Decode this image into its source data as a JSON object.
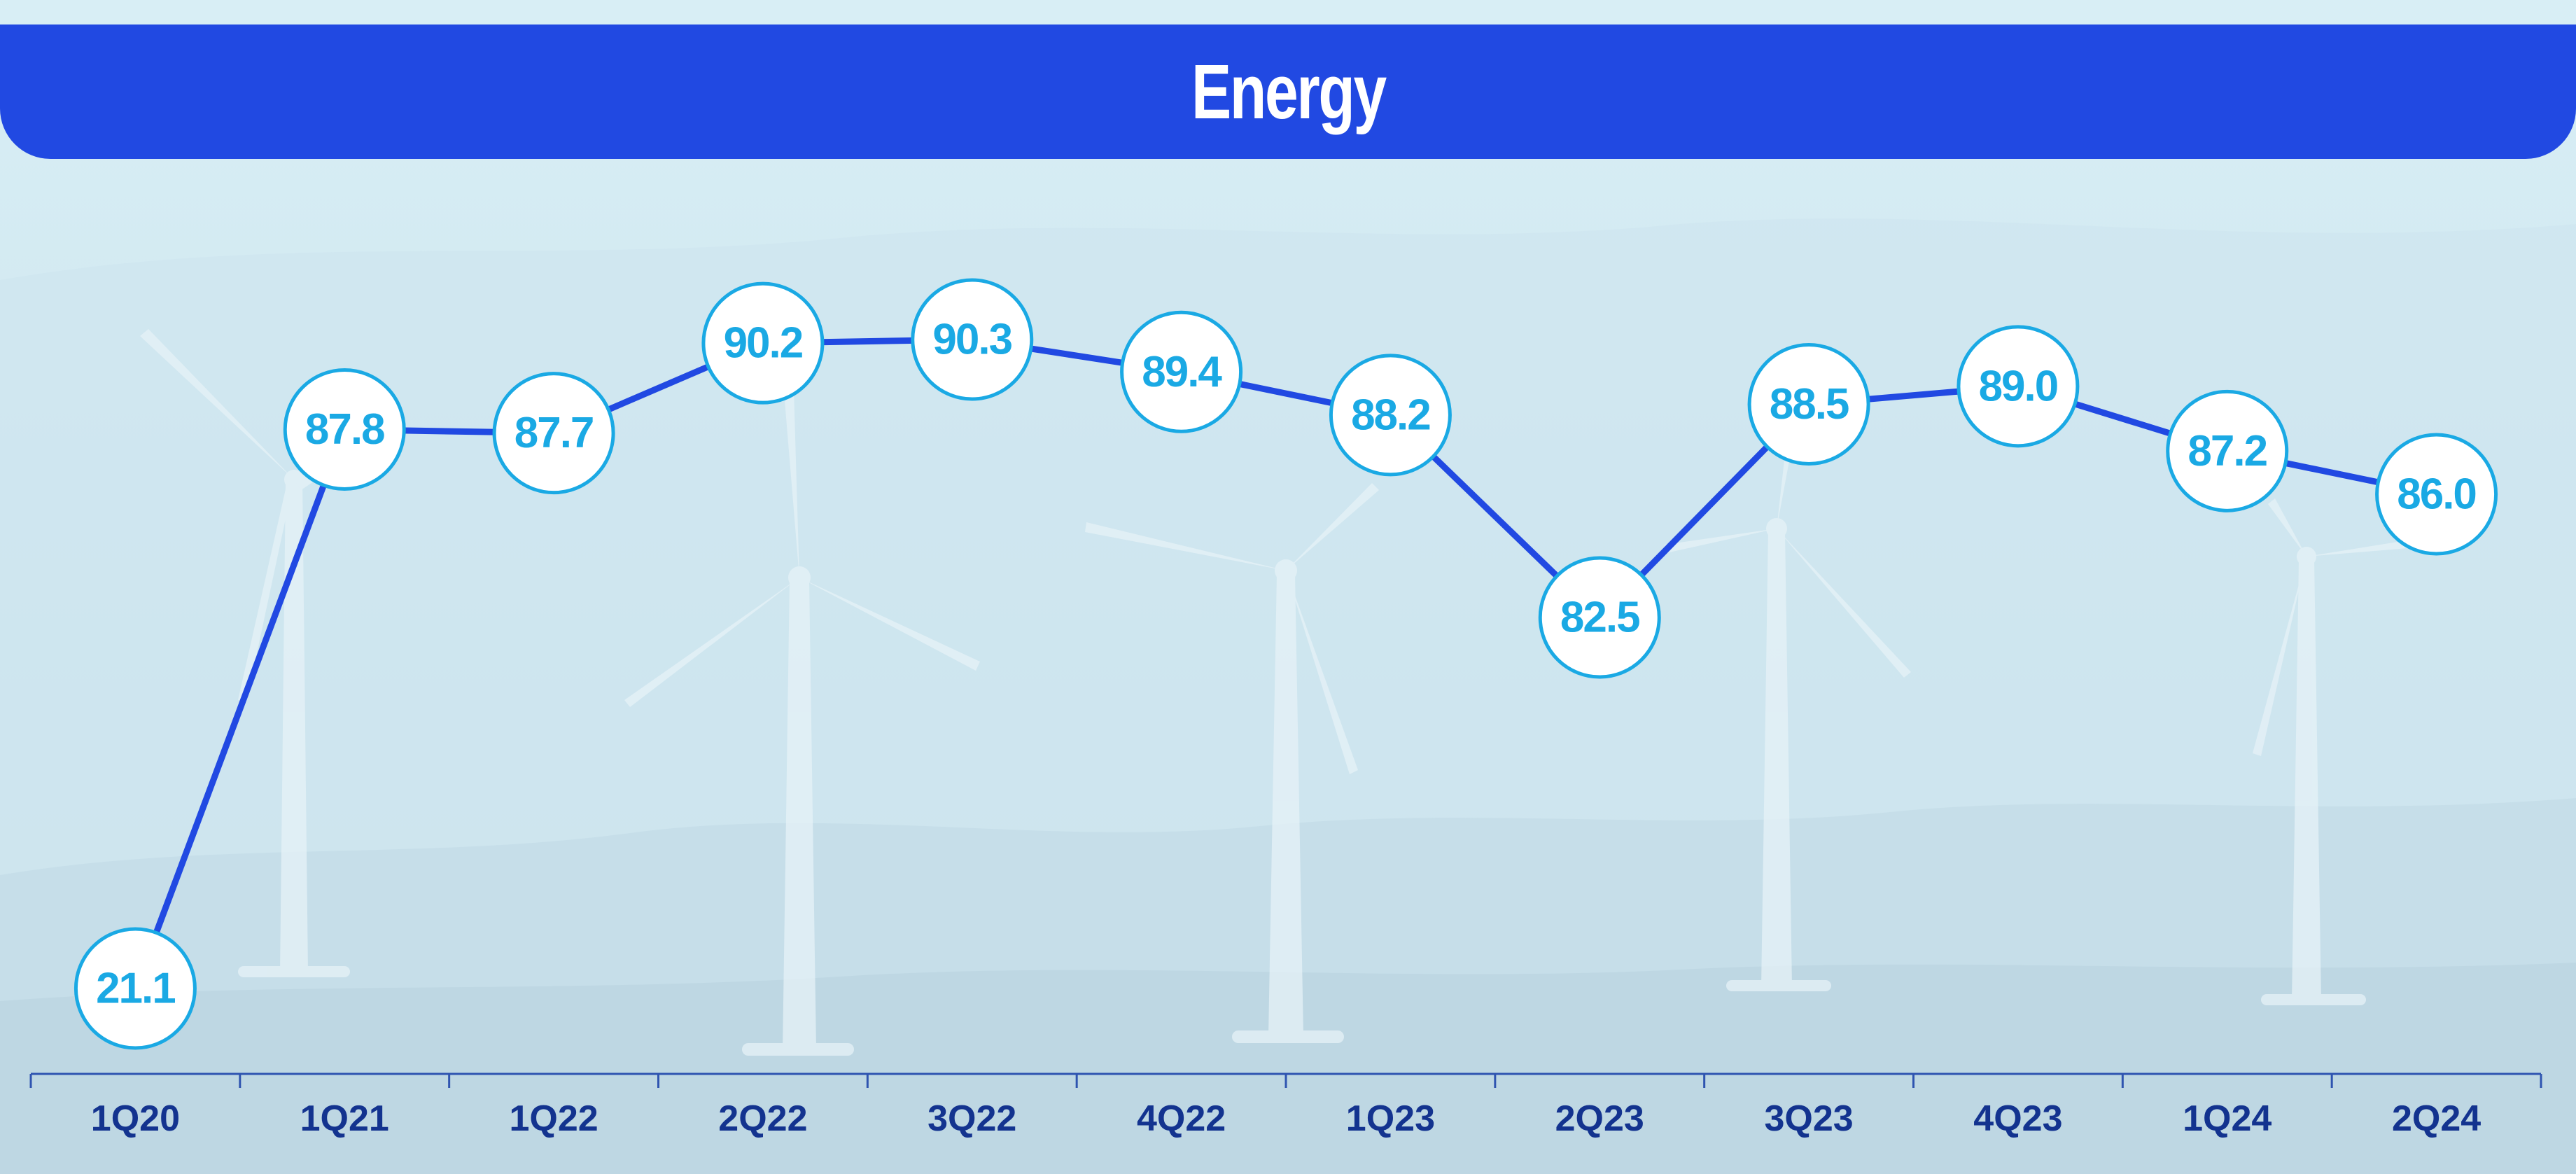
{
  "header": {
    "title": "Energy"
  },
  "colors": {
    "header_bg": "#2149e2",
    "header_text": "#ffffff",
    "line": "#2149e2",
    "marker_border": "#1aa9e4",
    "marker_fill": "#ffffff",
    "value_label": "#1aa9e4",
    "axis": "#2f54b0",
    "tick_label": "#13338f",
    "background": "#d9edf3"
  },
  "background_image": {
    "icon": "wind-turbines-landscape"
  },
  "chart_data": {
    "type": "line",
    "title": "Energy",
    "xlabel": "",
    "ylabel": "",
    "categories": [
      "1Q20",
      "1Q21",
      "1Q22",
      "2Q22",
      "3Q22",
      "4Q22",
      "1Q23",
      "2Q23",
      "3Q23",
      "4Q23",
      "1Q24",
      "2Q24"
    ],
    "series": [
      {
        "values": [
          21.1,
          87.8,
          87.7,
          90.2,
          90.3,
          89.4,
          88.2,
          82.5,
          88.5,
          89.0,
          87.2,
          86.0
        ],
        "labels": [
          "21.1",
          "87.8",
          "87.7",
          "90.2",
          "90.3",
          "89.4",
          "88.2",
          "82.5",
          "88.5",
          "89.0",
          "87.2",
          "86.0"
        ]
      }
    ],
    "grid": false,
    "legend": "none",
    "data_labels": "inside circular markers"
  }
}
